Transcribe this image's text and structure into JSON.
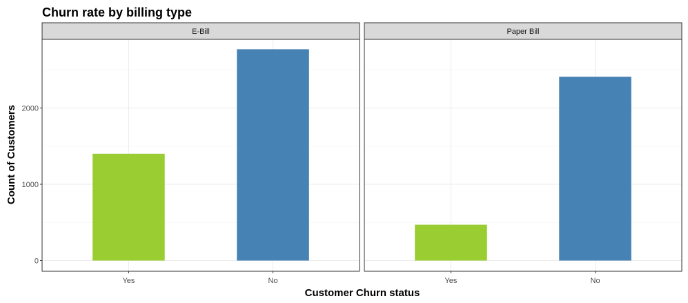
{
  "chart_data": {
    "type": "bar",
    "title": "Churn rate by billing type",
    "xlabel": "Customer Churn status",
    "ylabel": "Count of Customers",
    "categories": [
      "Yes",
      "No"
    ],
    "category_colors": {
      "Yes": "#9ACD32",
      "No": "#4682B4"
    },
    "ylim": [
      0,
      2900
    ],
    "yticks": [
      0,
      1000,
      2000
    ],
    "grid": true,
    "legend": "none",
    "facets": [
      {
        "name": "E-Bill",
        "values": [
          1400,
          2770
        ]
      },
      {
        "name": "Paper Bill",
        "values": [
          470,
          2410
        ]
      }
    ]
  }
}
